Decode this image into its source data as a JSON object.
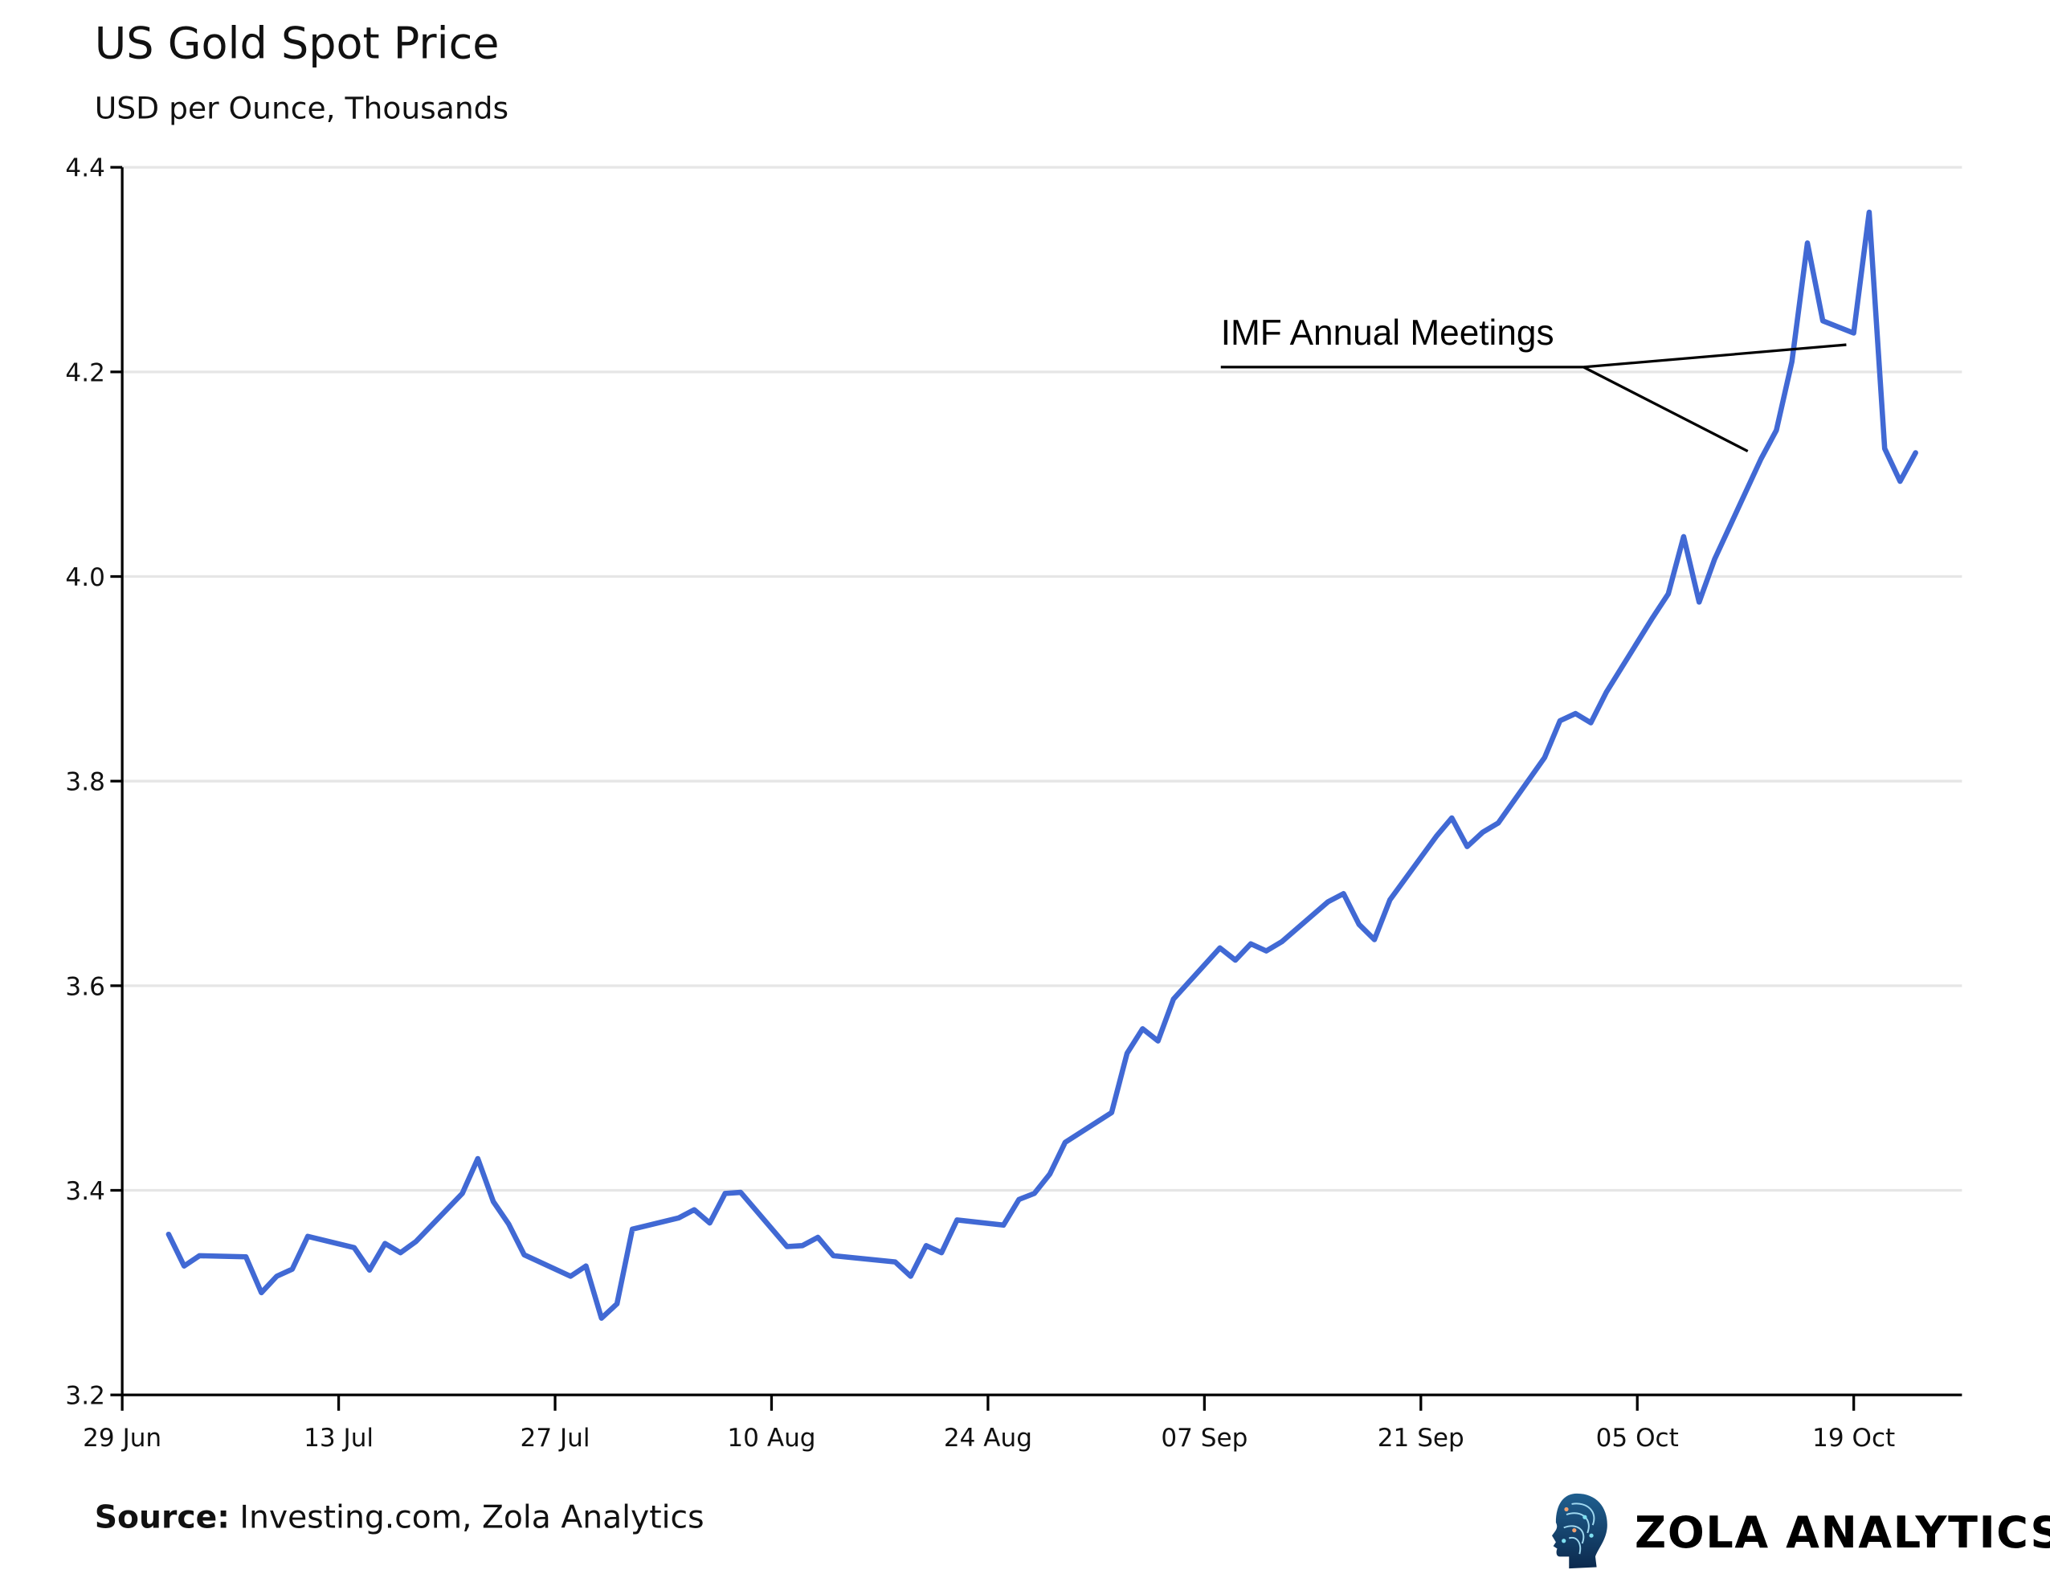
{
  "chart_data": {
    "type": "line",
    "title": "US Gold Spot Price",
    "subtitle": "USD per Ounce, Thousands",
    "xlabel": "",
    "ylabel": "",
    "ylim": [
      3.2,
      4.4
    ],
    "xlim": [
      "29 Jun",
      "26 Oct"
    ],
    "grid": "horizontal",
    "line_color": "#4169d4",
    "y_ticks": [
      "3.2",
      "3.4",
      "3.6",
      "3.8",
      "4.0",
      "4.2",
      "4.4"
    ],
    "x_ticks": [
      "29 Jun",
      "13 Jul",
      "27 Jul",
      "10 Aug",
      "24 Aug",
      "07 Sep",
      "21 Sep",
      "05 Oct",
      "19 Oct"
    ],
    "series": [
      {
        "x": [
          "02 Jul",
          "03 Jul",
          "04 Jul",
          "07 Jul",
          "08 Jul",
          "09 Jul",
          "10 Jul",
          "11 Jul",
          "14 Jul",
          "15 Jul",
          "16 Jul",
          "17 Jul",
          "18 Jul",
          "21 Jul",
          "22 Jul",
          "23 Jul",
          "24 Jul",
          "25 Jul",
          "28 Jul",
          "29 Jul",
          "30 Jul",
          "31 Jul",
          "01 Aug",
          "04 Aug",
          "05 Aug",
          "06 Aug",
          "07 Aug",
          "08 Aug",
          "11 Aug",
          "12 Aug",
          "13 Aug",
          "14 Aug",
          "18 Aug",
          "19 Aug",
          "20 Aug",
          "21 Aug",
          "22 Aug",
          "25 Aug",
          "26 Aug",
          "27 Aug",
          "28 Aug",
          "29 Aug",
          "01 Sep",
          "02 Sep",
          "03 Sep",
          "04 Sep",
          "05 Sep",
          "08 Sep",
          "09 Sep",
          "10 Sep",
          "11 Sep",
          "12 Sep",
          "15 Sep",
          "16 Sep",
          "17 Sep",
          "18 Sep",
          "19 Sep",
          "22 Sep",
          "23 Sep",
          "24 Sep",
          "25 Sep",
          "26 Sep",
          "29 Sep",
          "30 Sep",
          "01 Oct",
          "02 Oct",
          "03 Oct",
          "06 Oct",
          "07 Oct",
          "08 Oct",
          "09 Oct",
          "10 Oct",
          "13 Oct",
          "14 Oct",
          "15 Oct",
          "16 Oct",
          "17 Oct",
          "19 Oct",
          "20 Oct",
          "21 Oct",
          "22 Oct",
          "23 Oct"
        ],
        "values": [
          3.357,
          3.326,
          3.336,
          3.335,
          3.3,
          3.316,
          3.323,
          3.355,
          3.344,
          3.322,
          3.348,
          3.339,
          3.35,
          3.397,
          3.431,
          3.389,
          3.367,
          3.337,
          3.316,
          3.326,
          3.275,
          3.289,
          3.362,
          3.373,
          3.381,
          3.368,
          3.397,
          3.398,
          3.345,
          3.346,
          3.354,
          3.336,
          3.33,
          3.316,
          3.346,
          3.339,
          3.371,
          3.366,
          3.391,
          3.397,
          3.416,
          3.447,
          3.476,
          3.534,
          3.558,
          3.546,
          3.587,
          3.637,
          3.625,
          3.641,
          3.634,
          3.643,
          3.682,
          3.69,
          3.66,
          3.645,
          3.684,
          3.746,
          3.764,
          3.736,
          3.75,
          3.759,
          3.823,
          3.859,
          3.866,
          3.857,
          3.887,
          3.96,
          3.983,
          4.039,
          3.975,
          4.017,
          4.115,
          4.143,
          4.21,
          4.326,
          4.25,
          4.238,
          4.356,
          4.125,
          4.093,
          4.121
        ]
      }
    ],
    "annotations": [
      {
        "text": "IMF Annual Meetings",
        "targets": [
          "14 Oct",
          "19 Oct"
        ]
      }
    ]
  },
  "footer": {
    "source_label": "Source:",
    "source_text": " Investing.com, Zola Analytics",
    "brand": "ZOLA ANALYTICS",
    "logo_icon": "head-circuit-icon"
  }
}
